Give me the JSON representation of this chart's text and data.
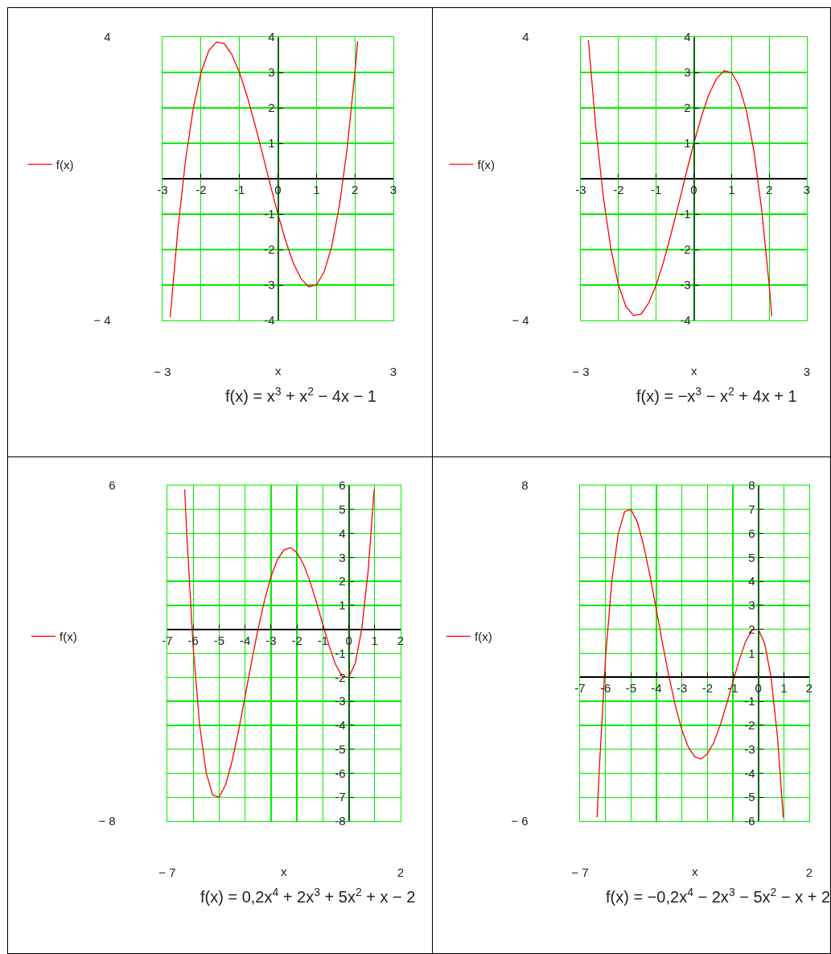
{
  "chart_data": [
    {
      "type": "line",
      "x": [
        -2.8,
        -2.6,
        -2.4,
        -2.2,
        -2,
        -1.8,
        -1.6,
        -1.4,
        -1.2,
        -1,
        -0.8,
        -0.6,
        -0.4,
        -0.2,
        0,
        0.2,
        0.4,
        0.6,
        0.8,
        1,
        1.2,
        1.4,
        1.6,
        1.8,
        2,
        2.07
      ],
      "series": [
        {
          "name": "f(x)",
          "color": "#ff0000",
          "values": [
            -3.91,
            -1.42,
            0.54,
            1.99,
            3,
            3.61,
            3.86,
            3.82,
            3.51,
            3,
            2.33,
            1.54,
            0.7,
            -0.17,
            -1,
            -1.75,
            -2.38,
            -2.82,
            -3.05,
            -3,
            -2.63,
            -1.9,
            -0.74,
            0.87,
            3,
            3.88
          ]
        }
      ],
      "xlim": [
        -3,
        3
      ],
      "ylim": [
        -4,
        4
      ],
      "xticks": [
        -3,
        -2,
        -1,
        0,
        1,
        2,
        3
      ],
      "yticks": [
        4,
        3,
        2,
        1,
        -1,
        -2,
        -3,
        -4
      ],
      "x2lim": [
        -3,
        3
      ],
      "x2ticks": [
        {
          "value": -3,
          "label": "− 3"
        },
        {
          "value": 3,
          "label": "3"
        }
      ],
      "y2lim": [
        -4,
        4
      ],
      "y2ticks": [
        {
          "value": 4,
          "label": "4"
        },
        {
          "value": -4,
          "label": "− 4"
        }
      ],
      "xlabel": "x",
      "annotations": [
        "f(x) = x$^{3}$ + x$^{2}$ − 4x − 1"
      ],
      "grid": true,
      "legend": "left",
      "line_style": "solid"
    },
    {
      "type": "line",
      "x": [
        -2.8,
        -2.6,
        -2.4,
        -2.2,
        -2,
        -1.8,
        -1.6,
        -1.4,
        -1.2,
        -1,
        -0.8,
        -0.6,
        -0.4,
        -0.2,
        0,
        0.2,
        0.4,
        0.6,
        0.8,
        1,
        1.2,
        1.4,
        1.6,
        1.8,
        2,
        2.07
      ],
      "series": [
        {
          "name": "f(x)",
          "color": "#ff0000",
          "values": [
            3.91,
            1.42,
            -0.54,
            -1.99,
            -3,
            -3.61,
            -3.86,
            -3.82,
            -3.51,
            -3,
            -2.33,
            -1.54,
            -0.7,
            0.17,
            1,
            1.75,
            2.38,
            2.82,
            3.05,
            3,
            2.63,
            1.9,
            0.74,
            -0.87,
            -3,
            -3.88
          ]
        }
      ],
      "xlim": [
        -3,
        3
      ],
      "ylim": [
        -4,
        4
      ],
      "xticks": [
        -3,
        -2,
        -1,
        0,
        1,
        2,
        3
      ],
      "yticks": [
        4,
        3,
        2,
        1,
        -1,
        -2,
        -3,
        -4
      ],
      "x2lim": [
        -3,
        3
      ],
      "x2ticks": [
        {
          "value": -3,
          "label": "− 3"
        },
        {
          "value": 3,
          "label": "3"
        }
      ],
      "y2lim": [
        -4,
        4
      ],
      "y2ticks": [
        {
          "value": 4,
          "label": "4"
        },
        {
          "value": -4,
          "label": "− 4"
        }
      ],
      "xlabel": "x",
      "annotations": [
        "f(x) = −x$^{3}$ − x$^{2}$ + 4x + 1"
      ],
      "grid": true,
      "legend": "left",
      "line_style": "solid"
    },
    {
      "type": "line",
      "x": [
        -6.33,
        -6.25,
        -6,
        -5.75,
        -5.5,
        -5.25,
        -5,
        -4.75,
        -4.5,
        -4.25,
        -4,
        -3.75,
        -3.5,
        -3.25,
        -3,
        -2.75,
        -2.5,
        -2.25,
        -2,
        -1.75,
        -1.5,
        -1.25,
        -1,
        -0.75,
        -0.5,
        -0.25,
        0,
        0.25,
        0.5,
        0.75,
        0.98
      ],
      "series": [
        {
          "name": "f(x)",
          "color": "#ff0000",
          "values": [
            5.84,
            3.96,
            -0.8,
            -4.03,
            -5.99,
            -6.91,
            -7,
            -6.47,
            -5.49,
            -4.22,
            -2.8,
            -1.36,
            0.01,
            1.21,
            2.2,
            2.91,
            3.31,
            3.41,
            3.2,
            2.72,
            2.01,
            1.14,
            0.2,
            -0.72,
            -1.49,
            -1.97,
            -2,
            -1.41,
            0.01,
            2.47,
            5.85
          ]
        }
      ],
      "xlim": [
        -7,
        2
      ],
      "ylim": [
        -8,
        6
      ],
      "xticks": [
        -7,
        -6,
        -5,
        -4,
        -3,
        -2,
        -1,
        0,
        1,
        2
      ],
      "yticks": [
        6,
        5,
        4,
        3,
        2,
        1,
        -1,
        -2,
        -3,
        -4,
        -5,
        -6,
        -7,
        -8
      ],
      "x2lim": [
        -7,
        2
      ],
      "x2ticks": [
        {
          "value": -7,
          "label": "− 7"
        },
        {
          "value": 2,
          "label": "2"
        }
      ],
      "y2lim": [
        -8,
        6
      ],
      "y2ticks": [
        {
          "value": 6,
          "label": "6"
        },
        {
          "value": -8,
          "label": "− 8"
        }
      ],
      "xlabel": "x",
      "annotations": [
        "f(x) = 0,2x$^{4}$ + 2x$^{3}$ + 5x$^{2}$ + x − 2"
      ],
      "grid": true,
      "legend": "left",
      "line_style": "solid"
    },
    {
      "type": "line",
      "x": [
        -6.33,
        -6.25,
        -6,
        -5.75,
        -5.5,
        -5.25,
        -5,
        -4.75,
        -4.5,
        -4.25,
        -4,
        -3.75,
        -3.5,
        -3.25,
        -3,
        -2.75,
        -2.5,
        -2.25,
        -2,
        -1.75,
        -1.5,
        -1.25,
        -1,
        -0.75,
        -0.5,
        -0.25,
        0,
        0.25,
        0.5,
        0.75,
        0.98
      ],
      "series": [
        {
          "name": "f(x)",
          "color": "#ff0000",
          "values": [
            -5.84,
            -3.96,
            0.8,
            4.03,
            5.99,
            6.91,
            7,
            6.47,
            5.49,
            4.22,
            2.8,
            1.36,
            -0.01,
            -1.21,
            -2.2,
            -2.91,
            -3.31,
            -3.41,
            -3.2,
            -2.72,
            -2.01,
            -1.14,
            -0.2,
            0.72,
            1.49,
            1.97,
            2,
            1.41,
            -0.01,
            -2.47,
            -5.85
          ]
        }
      ],
      "xlim": [
        -7,
        2
      ],
      "ylim": [
        -6,
        8
      ],
      "xticks": [
        -7,
        -6,
        -5,
        -4,
        -3,
        -2,
        -1,
        0,
        1,
        2
      ],
      "yticks": [
        8,
        7,
        6,
        5,
        4,
        3,
        2,
        1,
        -1,
        -2,
        -3,
        -4,
        -5,
        -6
      ],
      "x2lim": [
        -7,
        2
      ],
      "x2ticks": [
        {
          "value": -7,
          "label": "− 7"
        },
        {
          "value": 2,
          "label": "2"
        }
      ],
      "y2lim": [
        -6,
        8
      ],
      "y2ticks": [
        {
          "value": 8,
          "label": "8"
        },
        {
          "value": -6,
          "label": "− 6"
        }
      ],
      "xlabel": "x",
      "annotations": [
        "f(x) = −0,2x$^{4}$ − 2x$^{3}$ − 5x$^{2}$ − x + 2"
      ],
      "grid": true,
      "legend": "left",
      "line_style": "solid"
    }
  ]
}
